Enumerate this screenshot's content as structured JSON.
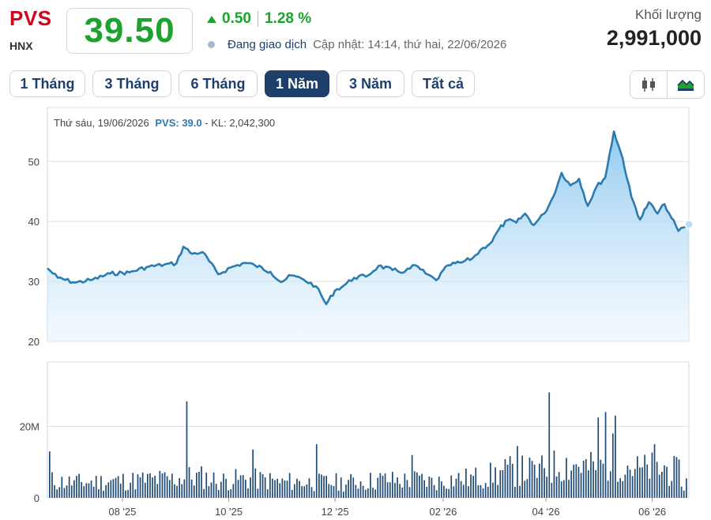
{
  "header": {
    "ticker": "PVS",
    "exchange": "HNX",
    "price": "39.50",
    "change": "0.50",
    "change_pct": "1.28 %",
    "status": "Đang giao dịch",
    "updated": "Cập nhật: 14:14, thứ hai, 22/06/2026",
    "volume_label": "Khối lượng",
    "volume": "2,991,000"
  },
  "colors": {
    "up": "#1fa12e",
    "ticker": "#d0021b",
    "navy": "#1f3f6b",
    "line": "#2b7bb0",
    "volume": "#1f4a73"
  },
  "tabs": [
    {
      "label": "1 Tháng"
    },
    {
      "label": "3 Tháng"
    },
    {
      "label": "6 Tháng"
    },
    {
      "label": "1 Năm",
      "active": true
    },
    {
      "label": "3 Năm"
    },
    {
      "label": "Tất cả"
    }
  ],
  "icons": [
    "candlestick-icon",
    "area-chart-icon"
  ],
  "tooltip": {
    "date": "Thứ sáu, 19/06/2026",
    "symbol_value": "PVS: 39.0",
    "volume": " - KL: 2,042,300"
  },
  "chart_data": {
    "type": "area",
    "price_axis": {
      "ticks": [
        20,
        30,
        40,
        50
      ],
      "ylim": [
        20,
        59
      ]
    },
    "volume_axis": {
      "ticks": [
        "0",
        "20M"
      ],
      "tick_values": [
        0,
        20000000
      ],
      "ylim": [
        0,
        38000000
      ]
    },
    "x_ticks": [
      "08 '25",
      "10 '25",
      "12 '25",
      "02 '26",
      "04 '26",
      "06 '26"
    ],
    "x_tick_dates": [
      "2025-08-01",
      "2025-10-01",
      "2025-12-01",
      "2026-02-01",
      "2026-04-01",
      "2026-06-01"
    ],
    "x_range": [
      "2025-06-19",
      "2026-06-22"
    ],
    "grid": true,
    "price_series": {
      "name": "PVS",
      "points": [
        [
          "2025-06-19",
          32.2
        ],
        [
          "2025-06-25",
          30.6
        ],
        [
          "2025-07-05",
          29.8
        ],
        [
          "2025-07-15",
          30.3
        ],
        [
          "2025-07-25",
          31.3
        ],
        [
          "2025-08-05",
          31.5
        ],
        [
          "2025-08-15",
          32.4
        ],
        [
          "2025-08-25",
          32.8
        ],
        [
          "2025-09-01",
          33.0
        ],
        [
          "2025-09-05",
          35.8
        ],
        [
          "2025-09-10",
          34.6
        ],
        [
          "2025-09-16",
          34.9
        ],
        [
          "2025-09-25",
          31.2
        ],
        [
          "2025-10-02",
          32.3
        ],
        [
          "2025-10-10",
          33.1
        ],
        [
          "2025-10-16",
          32.7
        ],
        [
          "2025-10-25",
          31.6
        ],
        [
          "2025-10-31",
          29.9
        ],
        [
          "2025-11-06",
          31.0
        ],
        [
          "2025-11-13",
          30.3
        ],
        [
          "2025-11-20",
          29.2
        ],
        [
          "2025-11-26",
          26.2
        ],
        [
          "2025-12-01",
          28.5
        ],
        [
          "2025-12-06",
          29.3
        ],
        [
          "2025-12-12",
          30.6
        ],
        [
          "2025-12-20",
          31.0
        ],
        [
          "2025-12-26",
          32.6
        ],
        [
          "2026-01-03",
          31.9
        ],
        [
          "2026-01-10",
          31.6
        ],
        [
          "2026-01-16",
          32.7
        ],
        [
          "2026-01-22",
          31.3
        ],
        [
          "2026-01-28",
          30.2
        ],
        [
          "2026-02-04",
          32.7
        ],
        [
          "2026-02-12",
          33.2
        ],
        [
          "2026-02-18",
          33.9
        ],
        [
          "2026-02-24",
          35.6
        ],
        [
          "2026-03-01",
          36.6
        ],
        [
          "2026-03-05",
          38.7
        ],
        [
          "2026-03-10",
          40.2
        ],
        [
          "2026-03-15",
          39.8
        ],
        [
          "2026-03-20",
          41.3
        ],
        [
          "2026-03-25",
          39.4
        ],
        [
          "2026-03-31",
          41.3
        ],
        [
          "2026-04-05",
          44.0
        ],
        [
          "2026-04-10",
          48.1
        ],
        [
          "2026-04-15",
          46.0
        ],
        [
          "2026-04-20",
          47.1
        ],
        [
          "2026-04-25",
          42.6
        ],
        [
          "2026-04-30",
          45.8
        ],
        [
          "2026-05-05",
          47.3
        ],
        [
          "2026-05-10",
          55.0
        ],
        [
          "2026-05-15",
          50.5
        ],
        [
          "2026-05-20",
          44.1
        ],
        [
          "2026-05-25",
          40.3
        ],
        [
          "2026-05-30",
          43.2
        ],
        [
          "2026-06-04",
          41.3
        ],
        [
          "2026-06-08",
          42.9
        ],
        [
          "2026-06-12",
          40.6
        ],
        [
          "2026-06-16",
          38.4
        ],
        [
          "2026-06-19",
          39.0
        ],
        [
          "2026-06-22",
          39.5
        ]
      ]
    },
    "volume_series": {
      "name": "KL",
      "units": "shares",
      "highlights": [
        [
          "2025-06-20",
          13000000
        ],
        [
          "2025-09-06",
          27000000
        ],
        [
          "2025-10-14",
          13500000
        ],
        [
          "2025-11-20",
          15000000
        ],
        [
          "2026-01-14",
          12000000
        ],
        [
          "2026-03-15",
          14500000
        ],
        [
          "2026-04-03",
          29500000
        ],
        [
          "2026-04-30",
          22500000
        ],
        [
          "2026-05-05",
          24000000
        ],
        [
          "2026-05-10",
          23000000
        ],
        [
          "2026-06-02",
          15000000
        ],
        [
          "2026-06-19",
          2042300
        ],
        [
          "2026-06-22",
          2991000
        ]
      ],
      "baseline": 6000000
    }
  }
}
